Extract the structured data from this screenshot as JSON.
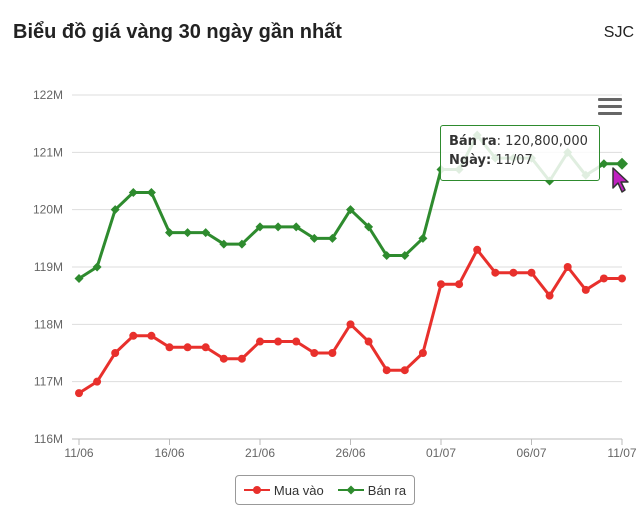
{
  "header": {
    "title": "Biểu đồ giá vàng 30 ngày gần nhất",
    "brand": "SJC"
  },
  "chart_data": {
    "type": "line",
    "title": "Biểu đồ giá vàng 30 ngày gần nhất",
    "xlabel": "",
    "ylabel": "",
    "ylim": [
      116000000,
      122000000
    ],
    "y_ticks": [
      {
        "value": 116000000,
        "label": "116M"
      },
      {
        "value": 117000000,
        "label": "117M"
      },
      {
        "value": 118000000,
        "label": "118M"
      },
      {
        "value": 119000000,
        "label": "119M"
      },
      {
        "value": 120000000,
        "label": "120M"
      },
      {
        "value": 121000000,
        "label": "121M"
      },
      {
        "value": 122000000,
        "label": "122M"
      }
    ],
    "x_tick_labels": [
      {
        "index": 0,
        "label": "11/06"
      },
      {
        "index": 5,
        "label": "16/06"
      },
      {
        "index": 10,
        "label": "21/06"
      },
      {
        "index": 15,
        "label": "26/06"
      },
      {
        "index": 20,
        "label": "01/07"
      },
      {
        "index": 25,
        "label": "06/07"
      },
      {
        "index": 30,
        "label": "11/07"
      }
    ],
    "categories": [
      "11/06",
      "12/06",
      "13/06",
      "14/06",
      "15/06",
      "16/06",
      "17/06",
      "18/06",
      "19/06",
      "20/06",
      "21/06",
      "22/06",
      "23/06",
      "24/06",
      "25/06",
      "26/06",
      "27/06",
      "28/06",
      "29/06",
      "30/06",
      "01/07",
      "02/07",
      "03/07",
      "04/07",
      "05/07",
      "06/07",
      "07/07",
      "08/07",
      "09/07",
      "10/07",
      "11/07"
    ],
    "point_indices": [
      0,
      1,
      2,
      3,
      4,
      5,
      6,
      7,
      8,
      9,
      10,
      11,
      12,
      13,
      14,
      15,
      16,
      17,
      18,
      19,
      20,
      21,
      22,
      23,
      24,
      25,
      26,
      27,
      28,
      29,
      30
    ],
    "series": [
      {
        "name": "Mua vào",
        "color": "#e8302c",
        "marker": "circle",
        "values": [
          116800000,
          117000000,
          117500000,
          117800000,
          117800000,
          117600000,
          117600000,
          117600000,
          117400000,
          117400000,
          117700000,
          117700000,
          117700000,
          117500000,
          117500000,
          118000000,
          117700000,
          117200000,
          117200000,
          117500000,
          118700000,
          118700000,
          119300000,
          118900000,
          118900000,
          118900000,
          118500000,
          119000000,
          118600000,
          118800000,
          118800000
        ]
      },
      {
        "name": "Bán ra",
        "color": "#2e8b2e",
        "marker": "diamond",
        "values": [
          118800000,
          119000000,
          120000000,
          120300000,
          120300000,
          119600000,
          119600000,
          119600000,
          119400000,
          119400000,
          119700000,
          119700000,
          119700000,
          119500000,
          119500000,
          120000000,
          119700000,
          119200000,
          119200000,
          119500000,
          120700000,
          120700000,
          121300000,
          120900000,
          120900000,
          120900000,
          120500000,
          121000000,
          120600000,
          120800000,
          120800000
        ]
      }
    ],
    "grid": true,
    "legend_position": "bottom-center"
  },
  "tooltip": {
    "label1": "Bán ra",
    "value1": ": 120,800,000",
    "label2": "Ngày:",
    "value2": " 11/07",
    "series_index": 1,
    "point_index": 30
  }
}
